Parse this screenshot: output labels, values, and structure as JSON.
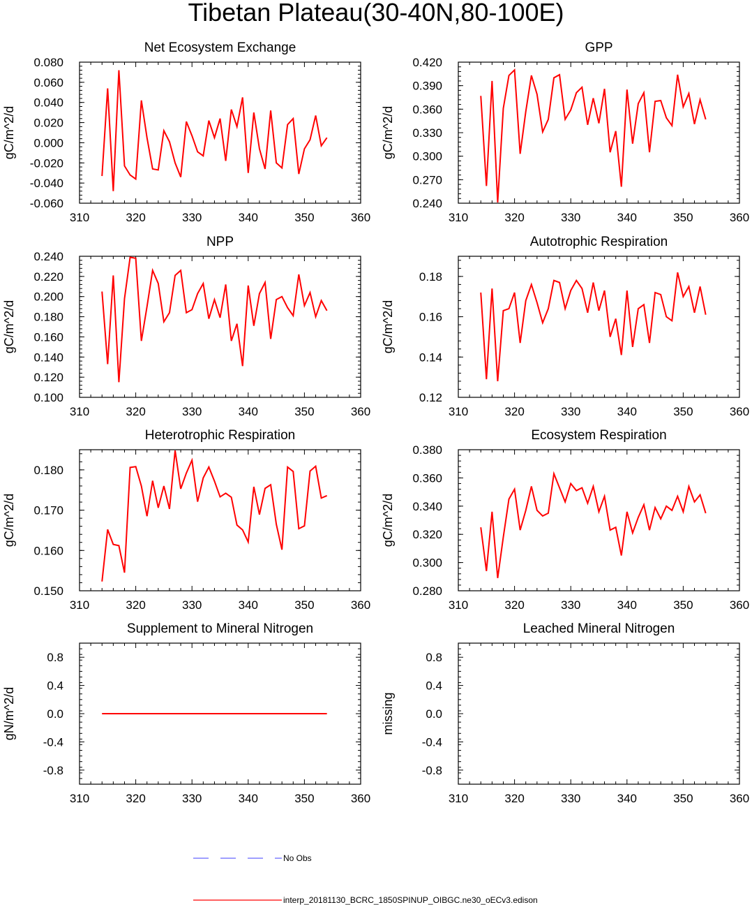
{
  "figure": {
    "title": "Tibetan Plateau(30-40N,80-100E)"
  },
  "legend": {
    "obs_label": "No Obs",
    "obs_color": "#6666ff",
    "model_label": "interp_20181130_BCRC_1850SPINUP_OIBGC.ne30_oECv3.edison",
    "model_color": "#ff0000"
  },
  "chart_data": [
    {
      "type": "line",
      "title": "Net Ecosystem Exchange",
      "ylabel": "gC/m^2/d",
      "xlim": [
        310,
        360
      ],
      "ylim": [
        -0.06,
        0.08
      ],
      "xticks": [
        310,
        320,
        330,
        340,
        350,
        360
      ],
      "yticks": [
        "-0.060",
        "-0.040",
        "-0.020",
        "0.000",
        "0.020",
        "0.040",
        "0.060",
        "0.080"
      ],
      "x_start": 314,
      "series": [
        {
          "name": "model",
          "color": "#ff0000",
          "values": [
            -0.033,
            0.054,
            -0.048,
            0.072,
            -0.023,
            -0.032,
            -0.036,
            0.042,
            0.005,
            -0.026,
            -0.027,
            0.012,
            0.001,
            -0.02,
            -0.034,
            0.021,
            0.007,
            -0.009,
            -0.013,
            0.022,
            0.005,
            0.024,
            -0.018,
            0.033,
            0.016,
            0.045,
            -0.03,
            0.03,
            -0.006,
            -0.026,
            0.032,
            -0.02,
            -0.025,
            0.018,
            0.024,
            -0.031,
            -0.006,
            0.003,
            0.027,
            -0.003,
            0.005
          ]
        }
      ]
    },
    {
      "type": "line",
      "title": "GPP",
      "ylabel": "gC/m^2/d",
      "xlim": [
        310,
        360
      ],
      "ylim": [
        0.24,
        0.42
      ],
      "xticks": [
        310,
        320,
        330,
        340,
        350,
        360
      ],
      "yticks": [
        "0.240",
        "0.270",
        "0.300",
        "0.330",
        "0.360",
        "0.390",
        "0.420"
      ],
      "x_start": 314,
      "series": [
        {
          "name": "model",
          "color": "#ff0000",
          "values": [
            0.377,
            0.262,
            0.396,
            0.241,
            0.361,
            0.403,
            0.41,
            0.303,
            0.357,
            0.403,
            0.379,
            0.331,
            0.347,
            0.4,
            0.404,
            0.347,
            0.359,
            0.381,
            0.388,
            0.34,
            0.374,
            0.342,
            0.386,
            0.305,
            0.332,
            0.261,
            0.385,
            0.316,
            0.367,
            0.381,
            0.305,
            0.37,
            0.371,
            0.349,
            0.339,
            0.404,
            0.363,
            0.38,
            0.341,
            0.372,
            0.347
          ]
        }
      ]
    },
    {
      "type": "line",
      "title": "NPP",
      "ylabel": "gC/m^2/d",
      "xlim": [
        310,
        360
      ],
      "ylim": [
        0.1,
        0.24
      ],
      "xticks": [
        310,
        320,
        330,
        340,
        350,
        360
      ],
      "yticks": [
        "0.100",
        "0.120",
        "0.140",
        "0.160",
        "0.180",
        "0.200",
        "0.220",
        "0.240"
      ],
      "x_start": 314,
      "series": [
        {
          "name": "model",
          "color": "#ff0000",
          "values": [
            0.205,
            0.133,
            0.221,
            0.115,
            0.198,
            0.239,
            0.238,
            0.156,
            0.19,
            0.226,
            0.213,
            0.175,
            0.184,
            0.221,
            0.226,
            0.184,
            0.187,
            0.203,
            0.213,
            0.178,
            0.197,
            0.179,
            0.212,
            0.156,
            0.173,
            0.131,
            0.211,
            0.171,
            0.203,
            0.214,
            0.158,
            0.197,
            0.2,
            0.189,
            0.181,
            0.222,
            0.191,
            0.204,
            0.18,
            0.196,
            0.186
          ]
        }
      ]
    },
    {
      "type": "line",
      "title": "Autotrophic Respiration",
      "ylabel": "gC/m^2/d",
      "xlim": [
        310,
        360
      ],
      "ylim": [
        0.12,
        0.19
      ],
      "xticks": [
        310,
        320,
        330,
        340,
        350,
        360
      ],
      "yticks": [
        "0.12",
        "0.14",
        "0.16",
        "0.18"
      ],
      "x_start": 314,
      "series": [
        {
          "name": "model",
          "color": "#ff0000",
          "values": [
            0.172,
            0.129,
            0.174,
            0.128,
            0.163,
            0.164,
            0.172,
            0.147,
            0.168,
            0.176,
            0.167,
            0.157,
            0.164,
            0.178,
            0.177,
            0.164,
            0.173,
            0.178,
            0.174,
            0.162,
            0.177,
            0.163,
            0.173,
            0.15,
            0.159,
            0.141,
            0.173,
            0.145,
            0.164,
            0.166,
            0.147,
            0.172,
            0.171,
            0.16,
            0.158,
            0.182,
            0.17,
            0.175,
            0.162,
            0.175,
            0.161
          ]
        }
      ]
    },
    {
      "type": "line",
      "title": "Heterotrophic Respiration",
      "ylabel": "gC/m^2/d",
      "xlim": [
        310,
        360
      ],
      "ylim": [
        0.15,
        0.185
      ],
      "xticks": [
        310,
        320,
        330,
        340,
        350,
        360
      ],
      "yticks": [
        "0.150",
        "0.160",
        "0.170",
        "0.180"
      ],
      "x_start": 314,
      "series": [
        {
          "name": "model",
          "color": "#ff0000",
          "values": [
            0.1523,
            0.1652,
            0.1615,
            0.1612,
            0.1545,
            0.1806,
            0.1808,
            0.176,
            0.1685,
            0.1773,
            0.1706,
            0.176,
            0.1703,
            0.1848,
            0.1753,
            0.1792,
            0.1824,
            0.1721,
            0.178,
            0.1807,
            0.1772,
            0.1733,
            0.1742,
            0.1732,
            0.1663,
            0.1651,
            0.1621,
            0.1758,
            0.1689,
            0.1754,
            0.1763,
            0.1665,
            0.1602,
            0.1807,
            0.1796,
            0.1654,
            0.1661,
            0.1797,
            0.1809,
            0.173,
            0.1736
          ]
        }
      ]
    },
    {
      "type": "line",
      "title": "Ecosystem Respiration",
      "ylabel": "gC/m^2/d",
      "xlim": [
        310,
        360
      ],
      "ylim": [
        0.28,
        0.38
      ],
      "xticks": [
        310,
        320,
        330,
        340,
        350,
        360
      ],
      "yticks": [
        "0.280",
        "0.300",
        "0.320",
        "0.340",
        "0.360",
        "0.380"
      ],
      "x_start": 314,
      "series": [
        {
          "name": "model",
          "color": "#ff0000",
          "values": [
            0.325,
            0.294,
            0.336,
            0.289,
            0.318,
            0.345,
            0.352,
            0.323,
            0.337,
            0.354,
            0.337,
            0.333,
            0.335,
            0.363,
            0.353,
            0.343,
            0.356,
            0.351,
            0.353,
            0.342,
            0.354,
            0.336,
            0.347,
            0.323,
            0.325,
            0.305,
            0.336,
            0.321,
            0.332,
            0.341,
            0.323,
            0.339,
            0.331,
            0.34,
            0.337,
            0.347,
            0.336,
            0.354,
            0.343,
            0.348,
            0.335
          ]
        }
      ]
    },
    {
      "type": "line",
      "title": "Supplement to Mineral Nitrogen",
      "ylabel": "gN/m^2/d",
      "xlim": [
        310,
        360
      ],
      "ylim": [
        -1.0,
        1.0
      ],
      "xticks": [
        310,
        320,
        330,
        340,
        350,
        360
      ],
      "yticks": [
        "-0.8",
        "-0.4",
        "0.0",
        "0.4",
        "0.8"
      ],
      "x_start": 314,
      "series": [
        {
          "name": "model",
          "color": "#ff0000",
          "values": [
            0,
            0,
            0,
            0,
            0,
            0,
            0,
            0,
            0,
            0,
            0,
            0,
            0,
            0,
            0,
            0,
            0,
            0,
            0,
            0,
            0,
            0,
            0,
            0,
            0,
            0,
            0,
            0,
            0,
            0,
            0,
            0,
            0,
            0,
            0,
            0,
            0,
            0,
            0,
            0,
            0
          ]
        }
      ]
    },
    {
      "type": "line",
      "title": "Leached Mineral Nitrogen",
      "ylabel": "missing",
      "xlim": [
        310,
        360
      ],
      "ylim": [
        -1.0,
        1.0
      ],
      "xticks": [
        310,
        320,
        330,
        340,
        350,
        360
      ],
      "yticks": [
        "-0.8",
        "-0.4",
        "0.0",
        "0.4",
        "0.8"
      ],
      "x_start": 314,
      "series": []
    }
  ]
}
